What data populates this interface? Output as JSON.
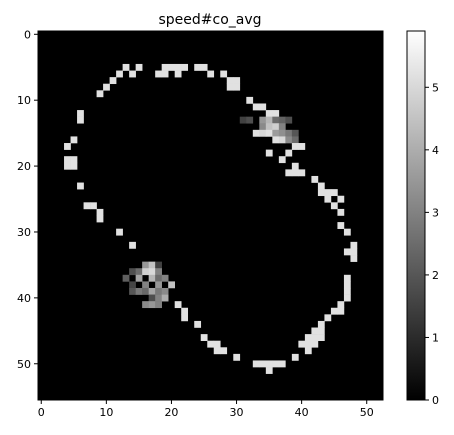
{
  "chart_data": {
    "type": "heatmap",
    "title": "speed#co_avg",
    "xlabel": "",
    "ylabel": "",
    "n_cols": 53,
    "n_rows": 56,
    "xlim": [
      -0.5,
      52.5
    ],
    "ylim": [
      55.5,
      -0.5
    ],
    "x_ticks": [
      0,
      10,
      20,
      30,
      40,
      50
    ],
    "y_ticks": [
      0,
      10,
      20,
      30,
      40,
      50
    ],
    "colormap": "gray",
    "background_value": 0,
    "colorbar": {
      "vmin": 0,
      "vmax": 5.9,
      "ticks": [
        0,
        1,
        2,
        3,
        4,
        5
      ]
    },
    "grid": false,
    "cells": [
      [
        13,
        5,
        5.2
      ],
      [
        15,
        5,
        5.2
      ],
      [
        19,
        5,
        5.2
      ],
      [
        20,
        5,
        5.2
      ],
      [
        21,
        5,
        5.2
      ],
      [
        22,
        5,
        5.2
      ],
      [
        24,
        5,
        5.2
      ],
      [
        25,
        5,
        5.2
      ],
      [
        12,
        6,
        5.2
      ],
      [
        14,
        6,
        5.2
      ],
      [
        18,
        6,
        5.2
      ],
      [
        19,
        6,
        5.2
      ],
      [
        21,
        6,
        5.2
      ],
      [
        26,
        6,
        5.2
      ],
      [
        28,
        6,
        5.2
      ],
      [
        11,
        7,
        5.2
      ],
      [
        29,
        7,
        5.2
      ],
      [
        30,
        7,
        5.2
      ],
      [
        10,
        8,
        5.2
      ],
      [
        29,
        8,
        5.2
      ],
      [
        30,
        8,
        5.2
      ],
      [
        9,
        9,
        5.2
      ],
      [
        32,
        10,
        5.2
      ],
      [
        33,
        11,
        5.2
      ],
      [
        34,
        11,
        5.2
      ],
      [
        6,
        12,
        5.2
      ],
      [
        35,
        12,
        5.2
      ],
      [
        36,
        12,
        5.2
      ],
      [
        6,
        13,
        5.2
      ],
      [
        31,
        13,
        1.5
      ],
      [
        32,
        13,
        1.8
      ],
      [
        34,
        13,
        3.5
      ],
      [
        35,
        13,
        4.2
      ],
      [
        36,
        13,
        2.5
      ],
      [
        37,
        13,
        2.3
      ],
      [
        38,
        13,
        1.8
      ],
      [
        34,
        14,
        3.2
      ],
      [
        35,
        14,
        4.5
      ],
      [
        36,
        14,
        4.8
      ],
      [
        37,
        14,
        3.0
      ],
      [
        33,
        15,
        5.2
      ],
      [
        34,
        15,
        5.0
      ],
      [
        35,
        15,
        5.2
      ],
      [
        36,
        15,
        3.6
      ],
      [
        37,
        15,
        3.3
      ],
      [
        38,
        15,
        2.8
      ],
      [
        39,
        15,
        2.0
      ],
      [
        5,
        16,
        5.2
      ],
      [
        36,
        16,
        5.2
      ],
      [
        37,
        16,
        5.0
      ],
      [
        38,
        16,
        3.2
      ],
      [
        39,
        16,
        2.5
      ],
      [
        4,
        17,
        5.2
      ],
      [
        39,
        17,
        5.2
      ],
      [
        40,
        17,
        5.2
      ],
      [
        35,
        18,
        5.2
      ],
      [
        38,
        18,
        5.2
      ],
      [
        4,
        19,
        5.2
      ],
      [
        5,
        19,
        5.2
      ],
      [
        37,
        19,
        5.2
      ],
      [
        4,
        20,
        5.2
      ],
      [
        5,
        20,
        5.2
      ],
      [
        39,
        20,
        5.2
      ],
      [
        38,
        21,
        5.2
      ],
      [
        39,
        21,
        5.2
      ],
      [
        40,
        21,
        5.2
      ],
      [
        42,
        22,
        5.2
      ],
      [
        6,
        23,
        5.2
      ],
      [
        43,
        23,
        5.2
      ],
      [
        43,
        24,
        5.2
      ],
      [
        44,
        24,
        5.2
      ],
      [
        45,
        24,
        5.2
      ],
      [
        44,
        25,
        5.2
      ],
      [
        46,
        25,
        5.2
      ],
      [
        7,
        26,
        5.2
      ],
      [
        8,
        26,
        5.2
      ],
      [
        45,
        26,
        5.2
      ],
      [
        9,
        27,
        5.2
      ],
      [
        46,
        27,
        5.2
      ],
      [
        9,
        28,
        5.2
      ],
      [
        46,
        29,
        5.2
      ],
      [
        12,
        30,
        5.2
      ],
      [
        47,
        30,
        5.2
      ],
      [
        14,
        32,
        5.2
      ],
      [
        48,
        32,
        5.2
      ],
      [
        47,
        33,
        5.2
      ],
      [
        48,
        33,
        5.2
      ],
      [
        48,
        34,
        5.2
      ],
      [
        16,
        35,
        3.5
      ],
      [
        17,
        35,
        4.5
      ],
      [
        18,
        35,
        1.5
      ],
      [
        14,
        36,
        1.8
      ],
      [
        15,
        36,
        2.5
      ],
      [
        16,
        36,
        4.8
      ],
      [
        17,
        36,
        5.0
      ],
      [
        18,
        36,
        3.0
      ],
      [
        13,
        37,
        2.2
      ],
      [
        15,
        37,
        3.8
      ],
      [
        17,
        37,
        4.2
      ],
      [
        18,
        37,
        2.5
      ],
      [
        19,
        37,
        3.0
      ],
      [
        47,
        37,
        5.2
      ],
      [
        14,
        38,
        1.6
      ],
      [
        16,
        38,
        3.0
      ],
      [
        18,
        38,
        3.5
      ],
      [
        20,
        38,
        4.5
      ],
      [
        47,
        38,
        5.2
      ],
      [
        14,
        39,
        2.0
      ],
      [
        15,
        39,
        2.8
      ],
      [
        16,
        39,
        2.4
      ],
      [
        17,
        39,
        3.8
      ],
      [
        18,
        39,
        2.8
      ],
      [
        19,
        39,
        3.2
      ],
      [
        47,
        39,
        5.2
      ],
      [
        17,
        40,
        1.8
      ],
      [
        18,
        40,
        3.0
      ],
      [
        19,
        40,
        4.0
      ],
      [
        47,
        40,
        5.2
      ],
      [
        16,
        41,
        3.2
      ],
      [
        17,
        41,
        3.5
      ],
      [
        18,
        41,
        3.0
      ],
      [
        21,
        41,
        5.2
      ],
      [
        46,
        41,
        5.2
      ],
      [
        45,
        42,
        5.2
      ],
      [
        46,
        42,
        5.2
      ],
      [
        22,
        42,
        5.2
      ],
      [
        22,
        43,
        5.2
      ],
      [
        44,
        43,
        5.2
      ],
      [
        24,
        44,
        5.2
      ],
      [
        43,
        44,
        5.2
      ],
      [
        42,
        45,
        5.2
      ],
      [
        43,
        45,
        5.2
      ],
      [
        25,
        46,
        5.2
      ],
      [
        41,
        46,
        5.2
      ],
      [
        42,
        46,
        5.2
      ],
      [
        43,
        46,
        5.2
      ],
      [
        26,
        47,
        5.2
      ],
      [
        27,
        47,
        5.2
      ],
      [
        40,
        47,
        5.2
      ],
      [
        41,
        47,
        5.2
      ],
      [
        42,
        47,
        5.2
      ],
      [
        27,
        48,
        5.2
      ],
      [
        28,
        48,
        5.2
      ],
      [
        41,
        48,
        5.2
      ],
      [
        39,
        49,
        5.2
      ],
      [
        30,
        49,
        5.2
      ],
      [
        33,
        50,
        5.2
      ],
      [
        34,
        50,
        5.2
      ],
      [
        35,
        50,
        5.2
      ],
      [
        36,
        50,
        5.2
      ],
      [
        37,
        50,
        5.2
      ],
      [
        35,
        51,
        5.2
      ]
    ]
  }
}
